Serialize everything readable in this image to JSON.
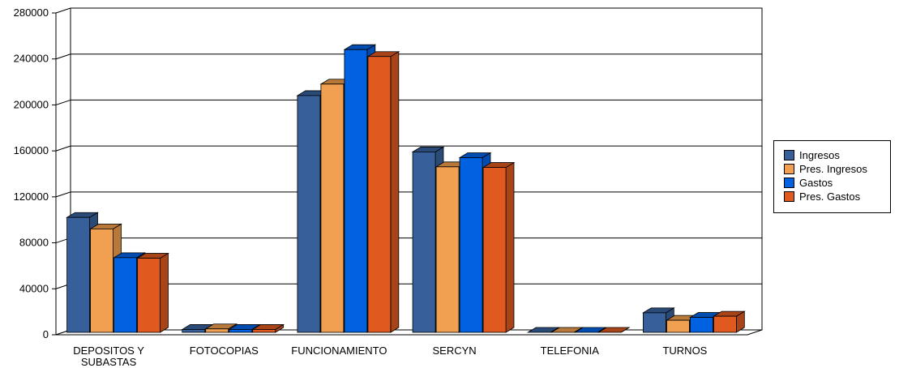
{
  "chart_data": {
    "type": "bar",
    "style": "3d-clustered-column",
    "categories": [
      "DEPOSITOS Y SUBASTAS",
      "FOTOCOPIAS",
      "FUNCIONAMIENTO",
      "SERCYN",
      "TELEFONIA",
      "TURNOS"
    ],
    "category_lines": [
      [
        "DEPOSITOS Y",
        "SUBASTAS"
      ],
      [
        "FOTOCOPIAS"
      ],
      [
        "FUNCIONAMIENTO"
      ],
      [
        "SERCYN"
      ],
      [
        "TELEFONIA"
      ],
      [
        "TURNOS"
      ]
    ],
    "series": [
      {
        "name": "Ingresos",
        "color": "#37609a",
        "side": "#2a4a78",
        "values": [
          100000,
          2500,
          206000,
          157000,
          0,
          17000
        ]
      },
      {
        "name": "Pres. Ingresos",
        "color": "#f0a050",
        "side": "#b8783a",
        "values": [
          90000,
          3000,
          216000,
          144000,
          0,
          10500
        ]
      },
      {
        "name": "Gastos",
        "color": "#0062e0",
        "side": "#004cb0",
        "values": [
          65000,
          2500,
          246000,
          152000,
          0,
          13000
        ]
      },
      {
        "name": "Pres. Gastos",
        "color": "#e05a20",
        "side": "#a84418",
        "values": [
          64500,
          2500,
          240000,
          143500,
          0,
          14000
        ]
      }
    ],
    "ylim": [
      0,
      280000
    ],
    "yticks": [
      0,
      40000,
      80000,
      120000,
      160000,
      200000,
      240000,
      280000
    ],
    "ytick_labels": [
      "0",
      "40000",
      "80000",
      "120000",
      "160000",
      "200000",
      "240000",
      "280000"
    ],
    "grid": true,
    "legend_position": "right"
  }
}
